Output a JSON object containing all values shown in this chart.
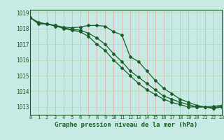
{
  "title": "Graphe pression niveau de la mer (hPa)",
  "bg_color": "#c8eae4",
  "grid_color_v": "#ddbbbb",
  "grid_color_h": "#bbddbb",
  "line_color": "#1a5c2a",
  "x_min": 0,
  "x_max": 23,
  "y_min": 1012.5,
  "y_max": 1019.2,
  "y_ticks": [
    1013,
    1014,
    1015,
    1016,
    1017,
    1018,
    1019
  ],
  "x_ticks": [
    0,
    1,
    2,
    3,
    4,
    5,
    6,
    7,
    8,
    9,
    10,
    11,
    12,
    13,
    14,
    15,
    16,
    17,
    18,
    19,
    20,
    21,
    22,
    23
  ],
  "series": [
    {
      "x": [
        0,
        1,
        2,
        3,
        4,
        5,
        6,
        7,
        8,
        9,
        10,
        11,
        12,
        13,
        14,
        15,
        16,
        17,
        18,
        19,
        20,
        21,
        22,
        23
      ],
      "y": [
        1018.7,
        1018.3,
        1018.3,
        1018.2,
        1018.1,
        1018.05,
        1018.1,
        1018.2,
        1018.2,
        1018.15,
        1017.8,
        1017.6,
        1016.2,
        1015.9,
        1015.3,
        1014.7,
        1014.2,
        1013.85,
        1013.5,
        1013.3,
        1013.1,
        1013.0,
        1013.05,
        1013.1
      ]
    },
    {
      "x": [
        0,
        1,
        2,
        3,
        4,
        5,
        6,
        7,
        8,
        9,
        10,
        11,
        12,
        13,
        14,
        15,
        16,
        17,
        18,
        19,
        20,
        21,
        22,
        23
      ],
      "y": [
        1018.7,
        1018.4,
        1018.3,
        1018.2,
        1018.0,
        1017.9,
        1017.8,
        1017.5,
        1017.0,
        1016.6,
        1016.0,
        1015.5,
        1015.0,
        1014.5,
        1014.1,
        1013.8,
        1013.5,
        1013.3,
        1013.15,
        1013.0,
        1013.0,
        1013.0,
        1012.9,
        1013.0
      ]
    },
    {
      "x": [
        0,
        1,
        2,
        3,
        4,
        5,
        6,
        7,
        8,
        9,
        10,
        11,
        12,
        13,
        14,
        15,
        16,
        17,
        18,
        19,
        20,
        21,
        22,
        23
      ],
      "y": [
        1018.7,
        1018.35,
        1018.3,
        1018.15,
        1018.05,
        1017.95,
        1017.9,
        1017.7,
        1017.4,
        1017.0,
        1016.4,
        1015.9,
        1015.3,
        1014.9,
        1014.5,
        1014.1,
        1013.7,
        1013.5,
        1013.3,
        1013.15,
        1013.0,
        1013.0,
        1012.95,
        1013.05
      ]
    }
  ]
}
